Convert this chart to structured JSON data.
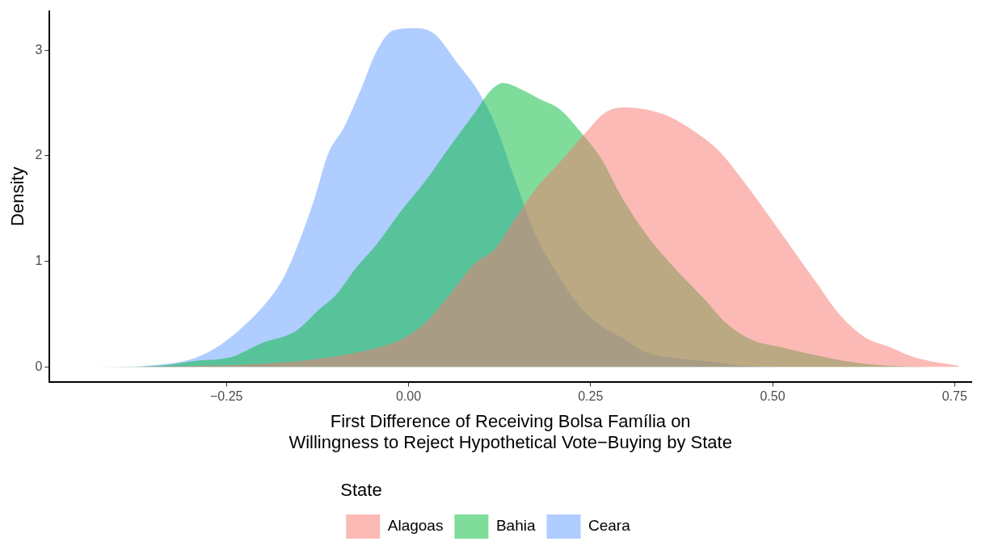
{
  "chart_data": {
    "type": "area",
    "xlabel": "First Difference of Receiving Bolsa Família on\nWillingness to Reject Hypothetical Vote−Buying by State",
    "ylabel": "Density",
    "legend_title": "State",
    "legend": "bottom",
    "grid": false,
    "xlim": [
      -0.493,
      0.773
    ],
    "xticks": [
      {
        "value": -0.25,
        "label": "−0.25"
      },
      {
        "value": 0,
        "label": "0.00"
      },
      {
        "value": 0.25,
        "label": "0.25"
      },
      {
        "value": 0.5,
        "label": "0.50"
      },
      {
        "value": 0.75,
        "label": "0.75"
      }
    ],
    "ylim": [
      -0.14,
      3.37
    ],
    "yticks": [
      0,
      1,
      2,
      3
    ],
    "series": [
      {
        "name": "Alagoas",
        "color": "#f8766d",
        "x": [
          -0.433,
          -0.29,
          -0.178,
          -0.1,
          -0.044,
          -0.01,
          0.023,
          0.057,
          0.091,
          0.119,
          0.147,
          0.174,
          0.208,
          0.242,
          0.27,
          0.298,
          0.326,
          0.359,
          0.393,
          0.426,
          0.46,
          0.494,
          0.527,
          0.56,
          0.594,
          0.627,
          0.66,
          0.695,
          0.728,
          0.756
        ],
        "values": [
          0,
          0.01,
          0.04,
          0.1,
          0.18,
          0.26,
          0.42,
          0.69,
          0.98,
          1.12,
          1.41,
          1.68,
          1.94,
          2.21,
          2.41,
          2.46,
          2.44,
          2.37,
          2.23,
          2.05,
          1.76,
          1.44,
          1.12,
          0.8,
          0.48,
          0.28,
          0.19,
          0.09,
          0.04,
          0.01
        ]
      },
      {
        "name": "Bahia",
        "color": "#00ba38",
        "x": [
          -0.433,
          -0.345,
          -0.29,
          -0.245,
          -0.2,
          -0.155,
          -0.122,
          -0.1,
          -0.072,
          -0.044,
          -0.01,
          0.023,
          0.057,
          0.091,
          0.113,
          0.13,
          0.152,
          0.18,
          0.208,
          0.236,
          0.264,
          0.292,
          0.326,
          0.365,
          0.404,
          0.437,
          0.47,
          0.516,
          0.56,
          0.605,
          0.66,
          0.717
        ],
        "values": [
          0,
          0.01,
          0.06,
          0.09,
          0.23,
          0.34,
          0.55,
          0.68,
          0.94,
          1.16,
          1.48,
          1.76,
          2.09,
          2.41,
          2.62,
          2.69,
          2.64,
          2.54,
          2.44,
          2.23,
          1.98,
          1.62,
          1.26,
          0.94,
          0.66,
          0.41,
          0.26,
          0.18,
          0.11,
          0.05,
          0.01,
          0
        ]
      },
      {
        "name": "Ceara",
        "color": "#619cff",
        "x": [
          -0.433,
          -0.39,
          -0.345,
          -0.3,
          -0.267,
          -0.234,
          -0.2,
          -0.172,
          -0.15,
          -0.128,
          -0.111,
          -0.088,
          -0.066,
          -0.044,
          -0.021,
          0.007,
          0.035,
          0.068,
          0.096,
          0.119,
          0.147,
          0.174,
          0.202,
          0.23,
          0.258,
          0.292,
          0.326,
          0.37,
          0.415,
          0.46,
          0.505
        ],
        "values": [
          0,
          0,
          0.02,
          0.07,
          0.17,
          0.34,
          0.57,
          0.84,
          1.19,
          1.62,
          2.01,
          2.28,
          2.62,
          2.99,
          3.19,
          3.21,
          3.16,
          2.87,
          2.61,
          2.3,
          1.76,
          1.26,
          0.91,
          0.62,
          0.42,
          0.28,
          0.14,
          0.08,
          0.05,
          0.01,
          0
        ]
      }
    ]
  }
}
